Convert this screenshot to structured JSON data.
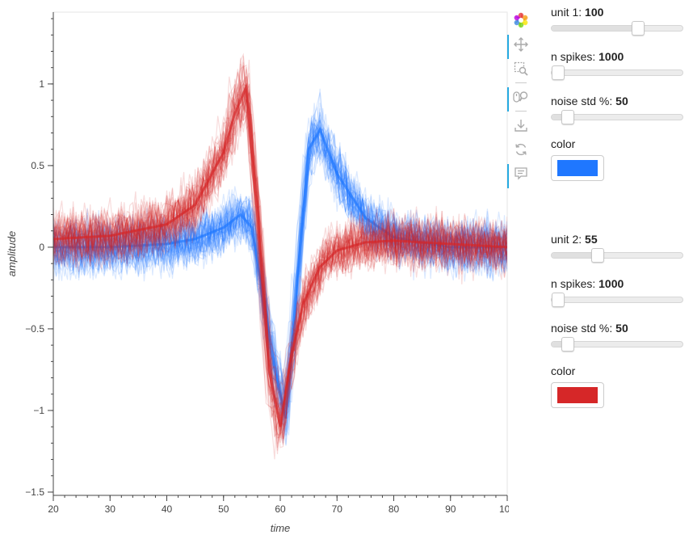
{
  "chart_data": {
    "type": "line",
    "title": "",
    "xlabel": "time",
    "ylabel": "amplitude",
    "xlim": [
      20,
      100
    ],
    "ylim": [
      -1.52,
      1.44
    ],
    "x_ticks": [
      20,
      30,
      40,
      50,
      60,
      70,
      80,
      90,
      100
    ],
    "x_tick_labels": [
      "20",
      "30",
      "40",
      "50",
      "60",
      "70",
      "80",
      "90",
      "100"
    ],
    "y_ticks": [
      -1.5,
      -1,
      -0.5,
      0,
      0.5,
      1
    ],
    "y_tick_labels": [
      "−1.5",
      "−1",
      "−0.5",
      "0",
      "0.5",
      "1"
    ],
    "grid": false,
    "legend": "none",
    "series": [
      {
        "color": "#1f77ff",
        "n_spikes": 1000,
        "noise_std_pct": 50,
        "x": [
          20,
          30,
          40,
          45,
          50,
          53,
          55,
          57,
          59,
          61,
          63,
          65,
          67,
          70,
          75,
          80,
          90,
          100
        ],
        "y": [
          0.0,
          0.0,
          0.02,
          0.05,
          0.12,
          0.2,
          0.12,
          -0.3,
          -0.75,
          -1.05,
          -0.2,
          0.6,
          0.72,
          0.45,
          0.18,
          0.06,
          0.0,
          0.0
        ]
      },
      {
        "color": "#d62728",
        "n_spikes": 1000,
        "noise_std_pct": 50,
        "x": [
          20,
          30,
          40,
          45,
          50,
          52,
          54,
          56,
          58,
          60,
          62,
          64,
          67,
          70,
          75,
          80,
          90,
          100
        ],
        "y": [
          0.05,
          0.07,
          0.14,
          0.26,
          0.58,
          0.82,
          0.98,
          0.2,
          -0.75,
          -1.1,
          -0.65,
          -0.35,
          -0.12,
          -0.02,
          0.03,
          0.04,
          0.02,
          0.0
        ]
      }
    ]
  },
  "toolbar": {
    "tools": [
      {
        "name": "bokeh-logo-icon",
        "active": false
      },
      {
        "name": "pan-icon",
        "active": true
      },
      {
        "name": "box-zoom-icon",
        "active": false
      },
      {
        "name": "wheel-zoom-icon",
        "active": true
      },
      {
        "name": "save-icon",
        "active": false
      },
      {
        "name": "reset-icon",
        "active": false
      },
      {
        "name": "hover-icon",
        "active": true
      }
    ]
  },
  "unit1": {
    "unit_label": "unit 1: ",
    "unit_value": "100",
    "unit_fraction": 0.67,
    "spikes_label": "n spikes: ",
    "spikes_value": "1000",
    "spikes_fraction": 0.0,
    "noise_label": "noise std %: ",
    "noise_value": "50",
    "noise_fraction": 0.08,
    "color_label": "color",
    "color": "#1f77ff"
  },
  "unit2": {
    "unit_label": "unit 2: ",
    "unit_value": "55",
    "unit_fraction": 0.33,
    "spikes_label": "n spikes: ",
    "spikes_value": "1000",
    "spikes_fraction": 0.0,
    "noise_label": "noise std %: ",
    "noise_value": "50",
    "noise_fraction": 0.08,
    "color_label": "color",
    "color": "#d62728"
  }
}
